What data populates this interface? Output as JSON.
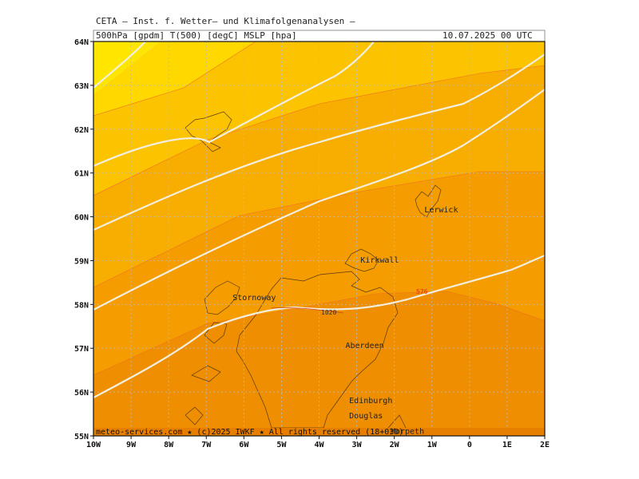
{
  "header": {
    "title": "CETA – Inst. f. Wetter– und Klimafolgenanalysen –",
    "fields": "500hPa [gpdm] T(500) [degC] MSLP [hpa]",
    "datetime": "10.07.2025 00 UTC"
  },
  "map": {
    "lat_labels": [
      "55N",
      "56N",
      "57N",
      "58N",
      "59N",
      "60N",
      "61N",
      "62N",
      "63N",
      "64N"
    ],
    "lon_labels": [
      "10W",
      "9W",
      "8W",
      "7W",
      "6W",
      "5W",
      "4W",
      "3W",
      "2W",
      "1W",
      "0",
      "1E",
      "2E"
    ],
    "places": [
      {
        "name": "Lerwick",
        "lon": -1.2,
        "lat": 60.1
      },
      {
        "name": "Kirkwall",
        "lon": -2.9,
        "lat": 58.95
      },
      {
        "name": "Stornoway",
        "lon": -6.3,
        "lat": 58.1
      },
      {
        "name": "Aberdeen",
        "lon": -3.3,
        "lat": 57.0
      },
      {
        "name": "Edinburgh",
        "lon": -3.2,
        "lat": 55.75
      },
      {
        "name": "Douglas",
        "lon": -3.2,
        "lat": 55.4
      },
      {
        "name": "Morpeth",
        "lon": -2.1,
        "lat": 55.05
      }
    ],
    "isobar_label": "1020",
    "isotherm_label": "576",
    "shade_colors": [
      "#e67f00",
      "#ee8e00",
      "#f49c00",
      "#f8ae00",
      "#fcc300",
      "#ffd800",
      "#ffe600"
    ]
  },
  "footer": {
    "credit": "meteo-services.com ★ (c)2025 IWKF ★ All rights reserved (18+030)"
  }
}
